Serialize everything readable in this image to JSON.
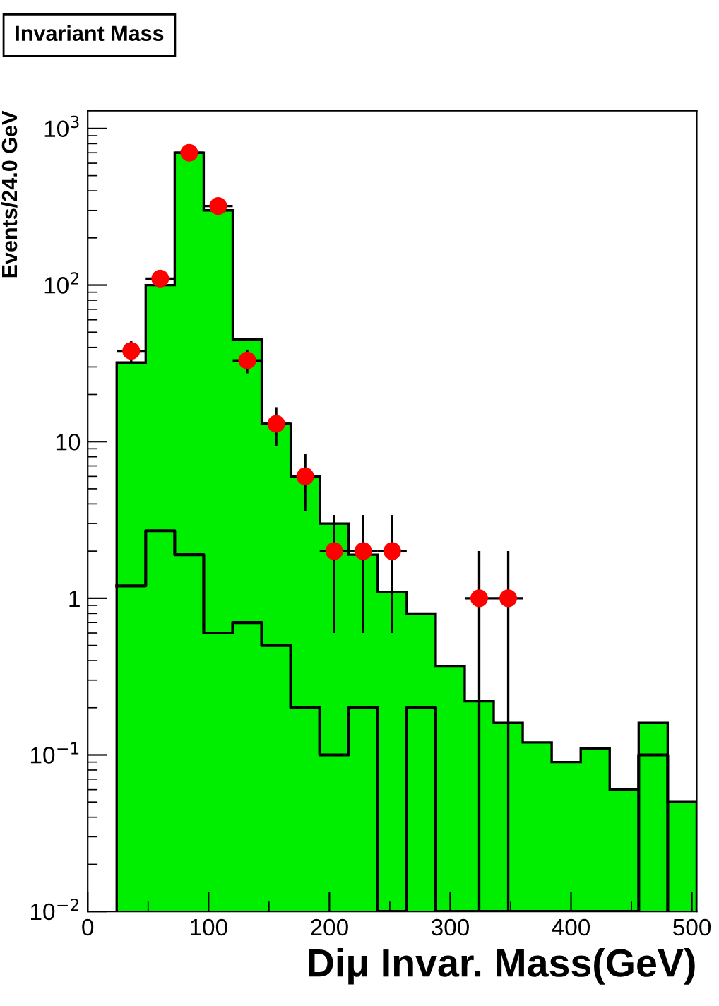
{
  "chart_data": {
    "type": "histogram",
    "title": "Invariant Mass",
    "xlabel": "Diμ Invar. Mass(GeV)",
    "ylabel": "Events/24.0 GeV",
    "log": "y",
    "xlim": [
      0,
      504
    ],
    "xticks": [
      0,
      100,
      200,
      300,
      400,
      500
    ],
    "ylim": [
      0.01,
      1300
    ],
    "yticks": [
      {
        "value": 0.01,
        "label": "10$^{−2}$"
      },
      {
        "value": 0.1,
        "label": "10$^{−1}$"
      },
      1,
      10,
      {
        "value": 100,
        "label": "10$^{2}$"
      },
      {
        "value": 1000,
        "label": "10$^{3}$"
      }
    ],
    "bins": [
      24,
      48,
      72,
      96,
      120,
      144,
      168,
      192,
      216,
      240,
      264,
      288,
      312,
      336,
      360,
      384,
      408,
      432,
      456,
      480,
      504
    ],
    "grid": false,
    "legend": false,
    "series": [
      {
        "color": "#00ee00",
        "values": [
          32,
          100,
          700,
          300,
          45,
          13,
          6,
          3,
          1.9,
          1.1,
          0.8,
          0.37,
          0.22,
          0.16,
          0.12,
          0.09,
          0.11,
          0.06,
          0.16,
          0.05
        ]
      },
      {
        "type": "step",
        "color": "#000000",
        "x": [
          24,
          48,
          72,
          96,
          120,
          144,
          168,
          192,
          216,
          240,
          264,
          288,
          312,
          336,
          360,
          384,
          408,
          432,
          456,
          480
        ],
        "values": [
          1.2,
          2.7,
          1.9,
          0.6,
          0.7,
          0.5,
          0.2,
          0.1,
          0.2,
          0.01,
          0.2,
          0.01,
          0.01,
          0.01,
          0.01,
          0.01,
          0.01,
          0.01,
          0.1,
          0.01
        ]
      },
      {
        "type": "scatter",
        "color": "#ff0000",
        "marker": "circle",
        "x": [
          36,
          60,
          84,
          108,
          132,
          156,
          180,
          204,
          228,
          252,
          324,
          348
        ],
        "values": [
          38,
          110,
          700,
          320,
          33,
          13,
          6,
          2,
          2,
          2,
          1,
          1
        ],
        "errors": [
          6,
          null,
          null,
          null,
          5.7,
          3.6,
          2.4,
          1.4,
          1.4,
          1.4,
          [
            0.99,
            1
          ],
          [
            0.99,
            1
          ]
        ],
        "xerrors": [
          12,
          12,
          12,
          12,
          12,
          12,
          12,
          12,
          12,
          12,
          12,
          12
        ]
      }
    ]
  }
}
